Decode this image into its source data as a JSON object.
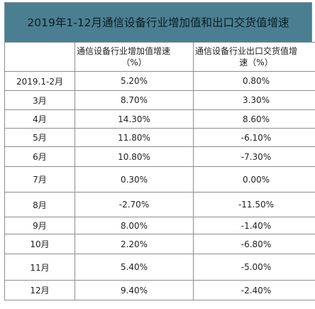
{
  "title": "2019年1-12月通信设备行业增加值和出口交货值增速",
  "header": {
    "col0": "",
    "col1_line1": "通信设备行业增加值增速",
    "col1_line2": "（%）",
    "col2_line1": "通信设备行业出口交货值增",
    "col2_line2": "速（%）"
  },
  "rows": [
    {
      "month": "2019.1-2月",
      "value_added": "5.20%",
      "export": "0.80%"
    },
    {
      "month": "3月",
      "value_added": "8.70%",
      "export": "3.30%"
    },
    {
      "month": "4月",
      "value_added": "14.30%",
      "export": "8.60%"
    },
    {
      "month": "5月",
      "value_added": "11.80%",
      "export": "-6.10%"
    },
    {
      "month": "6月",
      "value_added": "10.80%",
      "export": "-7.30%"
    },
    {
      "month": "7月",
      "value_added": "0.30%",
      "export": "0.00%"
    },
    {
      "month": "8月",
      "value_added": "-2.70%",
      "export": "-11.50%"
    },
    {
      "month": "9月",
      "value_added": "8.00%",
      "export": "-1.40%"
    },
    {
      "month": "10月",
      "value_added": "2.20%",
      "export": "-6.80%"
    },
    {
      "month": "11月",
      "value_added": "5.40%",
      "export": "-5.00%"
    },
    {
      "month": "12月",
      "value_added": "9.40%",
      "export": "-2.40%"
    }
  ]
}
